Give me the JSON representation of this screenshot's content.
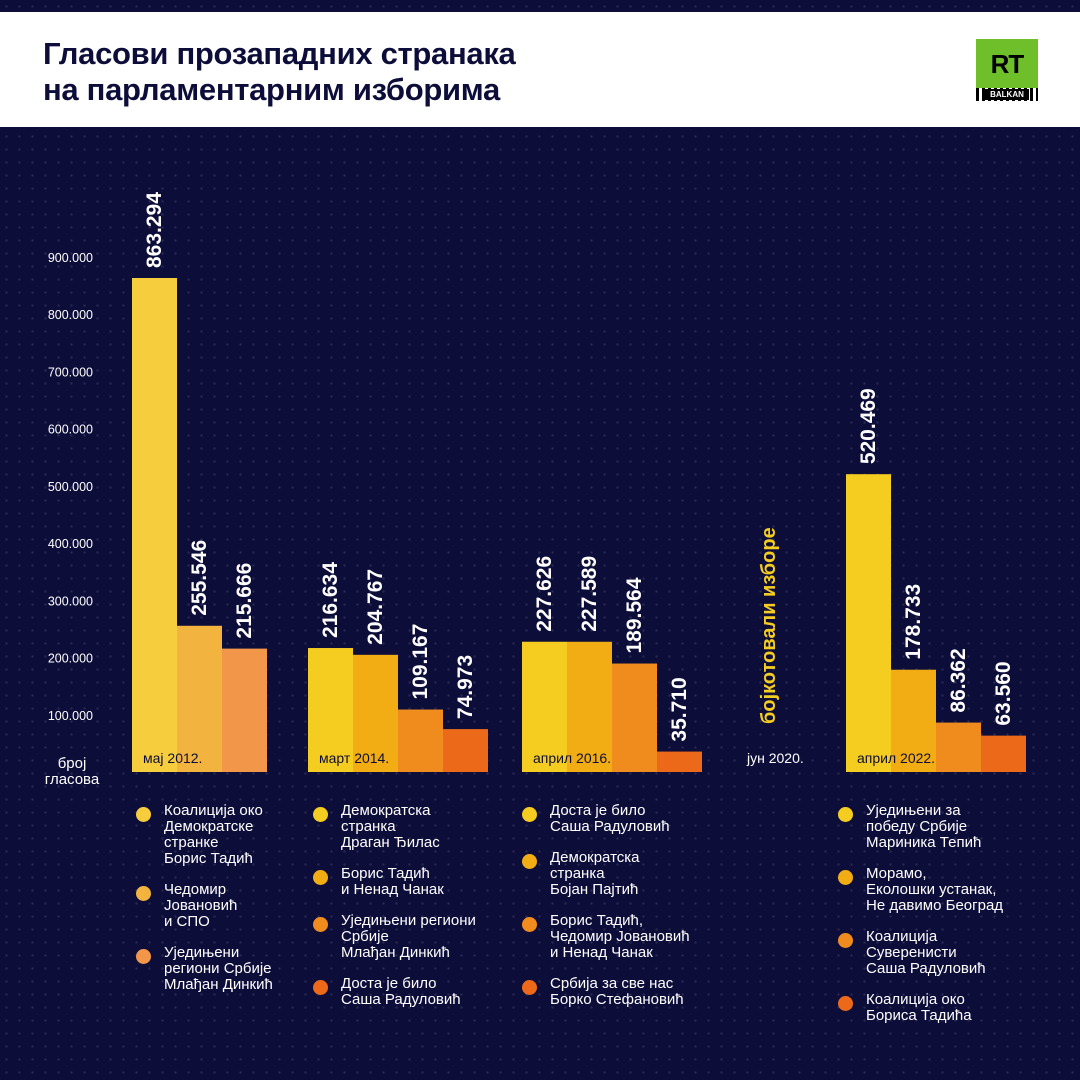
{
  "header": {
    "title": "Гласови прозападних странака\nна парламентарним изборима",
    "logo_text": "RT",
    "logo_subtext": "BALKAN"
  },
  "chart_data": {
    "type": "bar",
    "ylabel": "број\nгласова",
    "ylim": [
      0,
      900000
    ],
    "ytick_labels": [
      "100.000",
      "200.000",
      "300.000",
      "400.000",
      "500.000",
      "600.000",
      "700.000",
      "800.000",
      "900.000"
    ],
    "grid": false,
    "groups": [
      {
        "label": "мај 2012.",
        "bars": [
          {
            "value": 863294,
            "label": "863.294",
            "color": "#f5cd3d"
          },
          {
            "value": 255546,
            "label": "255.546",
            "color": "#f3b43f"
          },
          {
            "value": 215666,
            "label": "215.666",
            "color": "#f2964a"
          }
        ]
      },
      {
        "label": "март 2014.",
        "bars": [
          {
            "value": 216634,
            "label": "216.634",
            "color": "#f5cd20"
          },
          {
            "value": 204767,
            "label": "204.767",
            "color": "#f2ad14"
          },
          {
            "value": 109167,
            "label": "109.167",
            "color": "#f08c1e"
          },
          {
            "value": 74973,
            "label": "74.973",
            "color": "#ec6919"
          }
        ]
      },
      {
        "label": "април 2016.",
        "bars": [
          {
            "value": 227626,
            "label": "227.626",
            "color": "#f5cd20"
          },
          {
            "value": 227589,
            "label": "227.589",
            "color": "#f2ad14"
          },
          {
            "value": 189564,
            "label": "189.564",
            "color": "#f08c1e"
          },
          {
            "value": 35710,
            "label": "35.710",
            "color": "#ec6919"
          }
        ]
      },
      {
        "label": "јун 2020.",
        "note": "бојкотовали изборе",
        "note_color": "#f5cd20",
        "bars": []
      },
      {
        "label": "април 2022.",
        "bars": [
          {
            "value": 520469,
            "label": "520.469",
            "color": "#f5cd20"
          },
          {
            "value": 178733,
            "label": "178.733",
            "color": "#f2ad14"
          },
          {
            "value": 86362,
            "label": "86.362",
            "color": "#f08c1e"
          },
          {
            "value": 63560,
            "label": "63.560",
            "color": "#ec6919"
          }
        ]
      }
    ]
  },
  "legend": [
    [
      {
        "label": "Коалиција око\nДемократске\nстранке\nБорис Тадић",
        "color": "#f5cd3d"
      },
      {
        "label": "Чедомир\nЈовановић\nи СПО",
        "color": "#f3b43f"
      },
      {
        "label": "Уједињени\nрегиони Србије\nМлађан Динкић",
        "color": "#f2964a"
      }
    ],
    [
      {
        "label": "Демократска\nстранка\nДраган Ђилас",
        "color": "#f5cd20"
      },
      {
        "label": "Борис Тадић\nи Ненад Чанак",
        "color": "#f2ad14"
      },
      {
        "label": "Уједињени региони\nСрбије\nМлађан Динкић",
        "color": "#f08c1e"
      },
      {
        "label": "Доста је било\nСаша Радуловић",
        "color": "#ec6919"
      }
    ],
    [
      {
        "label": "Доста је било\nСаша Радуловић",
        "color": "#f5cd20"
      },
      {
        "label": "Демократска\nстранка\nБојан Пајтић",
        "color": "#f2ad14"
      },
      {
        "label": "Борис Тадић,\nЧедомир Јовановић\nи Ненад Чанак",
        "color": "#f08c1e"
      },
      {
        "label": "Србија за све нас\nБорко Стефановић",
        "color": "#ec6919"
      }
    ],
    [],
    [
      {
        "label": "Уједињени за\nпобеду Србије\nМариника Тепић",
        "color": "#f5cd20"
      },
      {
        "label": "Морамо,\nЕколошки устанак,\nНе давимо Београд",
        "color": "#f2ad14"
      },
      {
        "label": "Коалиција\nСуверенисти\nСаша Радуловић",
        "color": "#f08c1e"
      },
      {
        "label": "Коалиција око\nБориса Тадића",
        "color": "#ec6919"
      }
    ]
  ]
}
